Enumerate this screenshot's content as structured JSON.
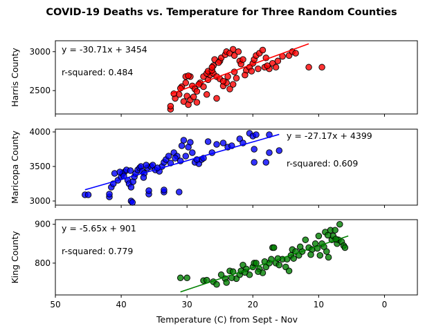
{
  "chart_data": {
    "title": "COVID-19 Deaths vs. Temperature for Three Random Counties",
    "xlabel": "Temperature (C) from Sept - Nov",
    "xlim": [
      50,
      -5
    ],
    "xticks": [
      50,
      40,
      30,
      20,
      10,
      0
    ],
    "shared_x": true,
    "panels": [
      {
        "type": "scatter",
        "name": "Harris County",
        "ylabel": "Harris County",
        "color": "#ff0000",
        "edge_color": "#000000",
        "ylim": [
          2200,
          3140
        ],
        "yticks": [
          2500,
          3000
        ],
        "equation": "y = -30.71x + 3454",
        "r_squared": "r-squared: 0.484",
        "annotation_position": "top-left",
        "regression": {
          "slope": -30.71,
          "intercept": 3454,
          "x_range": [
            32.5,
            11.5
          ]
        },
        "points": [
          [
            32.5,
            2260
          ],
          [
            32.5,
            2300
          ],
          [
            31.8,
            2400
          ],
          [
            31.2,
            2450
          ],
          [
            30.5,
            2360
          ],
          [
            30,
            2430
          ],
          [
            29.8,
            2320
          ],
          [
            29.5,
            2380
          ],
          [
            29,
            2420
          ],
          [
            28.5,
            2350
          ],
          [
            32,
            2460
          ],
          [
            30.8,
            2550
          ],
          [
            30.2,
            2600
          ],
          [
            29.5,
            2680
          ],
          [
            30.2,
            2680
          ],
          [
            29.2,
            2560
          ],
          [
            28.8,
            2520
          ],
          [
            28.5,
            2490
          ],
          [
            28,
            2600
          ],
          [
            27.5,
            2550
          ],
          [
            27,
            2450
          ],
          [
            26.8,
            2640
          ],
          [
            26.5,
            2700
          ],
          [
            26,
            2720
          ],
          [
            25.5,
            2680
          ],
          [
            25,
            2650
          ],
          [
            24.5,
            2560
          ],
          [
            24,
            2600
          ],
          [
            23.5,
            2520
          ],
          [
            23,
            2580
          ],
          [
            27.5,
            2680
          ],
          [
            27,
            2720
          ],
          [
            26.8,
            2750
          ],
          [
            26.2,
            2760
          ],
          [
            26,
            2820
          ],
          [
            25.8,
            2900
          ],
          [
            25,
            2880
          ],
          [
            24.8,
            2920
          ],
          [
            24.2,
            2960
          ],
          [
            24,
            3000
          ],
          [
            23.5,
            2980
          ],
          [
            23,
            3030
          ],
          [
            22.8,
            2950
          ],
          [
            22.2,
            3000
          ],
          [
            22,
            2880
          ],
          [
            21.8,
            2840
          ],
          [
            21.5,
            2900
          ],
          [
            21,
            2760
          ],
          [
            20.5,
            2800
          ],
          [
            20,
            2850
          ],
          [
            19.8,
            2900
          ],
          [
            19.5,
            2950
          ],
          [
            19,
            2980
          ],
          [
            18.5,
            3020
          ],
          [
            18,
            2920
          ],
          [
            17.5,
            2780
          ],
          [
            17,
            2850
          ],
          [
            16.5,
            2800
          ],
          [
            16.2,
            2880
          ],
          [
            15.5,
            2940
          ],
          [
            14.5,
            2950
          ],
          [
            14,
            3000
          ],
          [
            13.5,
            2980
          ],
          [
            11.5,
            2800
          ],
          [
            9.5,
            2800
          ],
          [
            25.5,
            2400
          ],
          [
            24.5,
            2620
          ],
          [
            22.5,
            2660
          ],
          [
            21.2,
            2700
          ],
          [
            20.2,
            2750
          ],
          [
            19.2,
            2780
          ],
          [
            18.2,
            2800
          ],
          [
            17.8,
            2820
          ],
          [
            23.8,
            2680
          ],
          [
            22.8,
            2740
          ],
          [
            28.2,
            2580
          ],
          [
            31,
            2530
          ],
          [
            29.8,
            2690
          ],
          [
            26.2,
            2800
          ],
          [
            25.2,
            2860
          ]
        ]
      },
      {
        "type": "scatter",
        "name": "Maricopa County",
        "ylabel": "Maricopa County",
        "color": "#0000ff",
        "edge_color": "#000000",
        "ylim": [
          2940,
          4040
        ],
        "yticks": [
          3000,
          3500,
          4000
        ],
        "equation": "y = -27.17x + 4399",
        "r_squared": "r-squared: 0.609",
        "annotation_position": "top-right",
        "regression": {
          "slope": -27.17,
          "intercept": 4399,
          "x_range": [
            45.5,
            16
          ]
        },
        "points": [
          [
            45.5,
            3090
          ],
          [
            45,
            3090
          ],
          [
            41.8,
            3060
          ],
          [
            41.8,
            3100
          ],
          [
            38.5,
            3000
          ],
          [
            38.3,
            2980
          ],
          [
            35.8,
            3100
          ],
          [
            35.8,
            3150
          ],
          [
            33.5,
            3130
          ],
          [
            33.5,
            3160
          ],
          [
            31.2,
            3130
          ],
          [
            41.5,
            3200
          ],
          [
            41.2,
            3250
          ],
          [
            40.5,
            3300
          ],
          [
            40,
            3350
          ],
          [
            39.8,
            3400
          ],
          [
            39.5,
            3420
          ],
          [
            39.2,
            3450
          ],
          [
            39,
            3300
          ],
          [
            38.8,
            3250
          ],
          [
            38.5,
            3200
          ],
          [
            38.2,
            3280
          ],
          [
            38,
            3350
          ],
          [
            37.8,
            3400
          ],
          [
            37.5,
            3450
          ],
          [
            37.2,
            3480
          ],
          [
            37,
            3500
          ],
          [
            36.8,
            3430
          ],
          [
            36.5,
            3400
          ],
          [
            36,
            3480
          ],
          [
            35.5,
            3500
          ],
          [
            35.2,
            3520
          ],
          [
            34.8,
            3450
          ],
          [
            34.2,
            3430
          ],
          [
            33.8,
            3500
          ],
          [
            33.5,
            3560
          ],
          [
            33.2,
            3600
          ],
          [
            32.8,
            3650
          ],
          [
            32.5,
            3550
          ],
          [
            32,
            3700
          ],
          [
            31.5,
            3650
          ],
          [
            31,
            3580
          ],
          [
            30.8,
            3800
          ],
          [
            30.5,
            3880
          ],
          [
            29.5,
            3850
          ],
          [
            29.2,
            3700
          ],
          [
            28.8,
            3560
          ],
          [
            28.2,
            3540
          ],
          [
            27.8,
            3600
          ],
          [
            27.5,
            3620
          ],
          [
            26.8,
            3860
          ],
          [
            25.5,
            3820
          ],
          [
            24.5,
            3840
          ],
          [
            23.8,
            3780
          ],
          [
            23.2,
            3800
          ],
          [
            22,
            3900
          ],
          [
            21.5,
            3840
          ],
          [
            20.5,
            3980
          ],
          [
            20,
            3940
          ],
          [
            19.5,
            3960
          ],
          [
            19.8,
            3560
          ],
          [
            19.8,
            3750
          ],
          [
            18,
            3560
          ],
          [
            17.5,
            3700
          ],
          [
            16,
            3730
          ],
          [
            17.5,
            3960
          ],
          [
            41,
            3400
          ],
          [
            40.2,
            3420
          ],
          [
            38.6,
            3440
          ],
          [
            36.2,
            3520
          ],
          [
            34.5,
            3480
          ],
          [
            30.2,
            3650
          ],
          [
            28.5,
            3600
          ],
          [
            26.2,
            3700
          ],
          [
            31.8,
            3620
          ],
          [
            29.8,
            3780
          ],
          [
            36.6,
            3340
          ],
          [
            39.6,
            3360
          ]
        ]
      },
      {
        "type": "scatter",
        "name": "King County",
        "ylabel": "King County",
        "color": "#008000",
        "edge_color": "#000000",
        "ylim": [
          718,
          912
        ],
        "yticks": [
          800,
          900
        ],
        "equation": "y = -5.65x + 901",
        "r_squared": "r-squared: 0.779",
        "annotation_position": "top-left",
        "regression": {
          "slope": -5.65,
          "intercept": 901,
          "x_range": [
            31,
            5.5
          ]
        },
        "points": [
          [
            31,
            762
          ],
          [
            30,
            762
          ],
          [
            27.5,
            755
          ],
          [
            27,
            756
          ],
          [
            26,
            752
          ],
          [
            24.2,
            760
          ],
          [
            24,
            750
          ],
          [
            23.5,
            780
          ],
          [
            23,
            778
          ],
          [
            22.5,
            760
          ],
          [
            22,
            770
          ],
          [
            21.8,
            780
          ],
          [
            21.5,
            795
          ],
          [
            21,
            785
          ],
          [
            20.5,
            770
          ],
          [
            20,
            790
          ],
          [
            19.8,
            800
          ],
          [
            19.5,
            800
          ],
          [
            19,
            785
          ],
          [
            18.5,
            775
          ],
          [
            18,
            790
          ],
          [
            17.5,
            800
          ],
          [
            17.2,
            810
          ],
          [
            17,
            840
          ],
          [
            16.8,
            840
          ],
          [
            16.5,
            800
          ],
          [
            16,
            795
          ],
          [
            15.5,
            810
          ],
          [
            15,
            790
          ],
          [
            14.8,
            810
          ],
          [
            14.5,
            780
          ],
          [
            14.2,
            820
          ],
          [
            14,
            835
          ],
          [
            13.5,
            830
          ],
          [
            13,
            820
          ],
          [
            12.5,
            830
          ],
          [
            12,
            860
          ],
          [
            11.5,
            840
          ],
          [
            11,
            835
          ],
          [
            10.5,
            850
          ],
          [
            10,
            870
          ],
          [
            9.8,
            820
          ],
          [
            9.5,
            850
          ],
          [
            9,
            880
          ],
          [
            8.8,
            830
          ],
          [
            8.5,
            815
          ],
          [
            8.2,
            885
          ],
          [
            8,
            860
          ],
          [
            7.8,
            870
          ],
          [
            7.5,
            885
          ],
          [
            7.2,
            850
          ],
          [
            7,
            860
          ],
          [
            6.8,
            900
          ],
          [
            6.5,
            855
          ],
          [
            6.2,
            845
          ],
          [
            6,
            840
          ],
          [
            25.5,
            745
          ],
          [
            24.8,
            770
          ],
          [
            23.2,
            762
          ],
          [
            21.2,
            776
          ],
          [
            19.2,
            778
          ],
          [
            18.2,
            804
          ],
          [
            16.2,
            812
          ],
          [
            13.8,
            812
          ],
          [
            12.8,
            842
          ],
          [
            11.2,
            822
          ],
          [
            10.2,
            838
          ],
          [
            8.6,
            872
          ],
          [
            7.4,
            862
          ],
          [
            9.2,
            842
          ]
        ]
      }
    ]
  }
}
